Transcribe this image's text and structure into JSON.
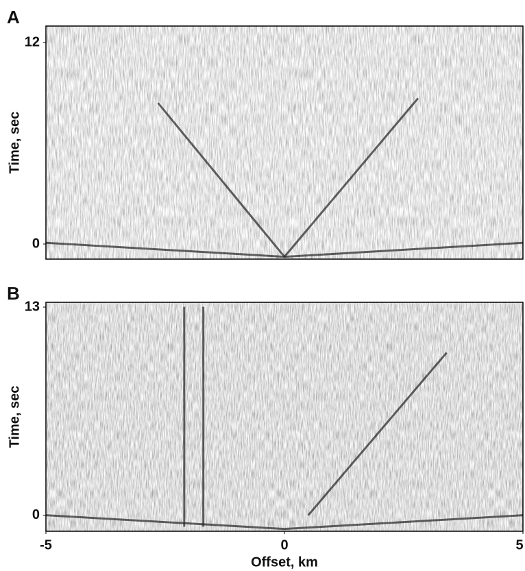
{
  "chart_data": [
    {
      "type": "seismogram",
      "panel_label": "A",
      "y_label": "Time, sec",
      "xlim": [
        -5,
        5
      ],
      "ylim": [
        -0.9,
        13
      ],
      "yticks": [
        0,
        12
      ]
    },
    {
      "type": "seismogram",
      "panel_label": "B",
      "y_label": "Time, sec",
      "x_label": "Offset, km",
      "xlim": [
        -5,
        5
      ],
      "xticks": [
        -5,
        0,
        5
      ],
      "ylim": [
        -1,
        13.3
      ],
      "yticks": [
        0,
        13
      ]
    }
  ]
}
